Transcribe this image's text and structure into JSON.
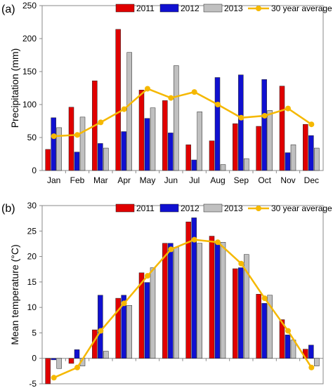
{
  "colors": {
    "2011": "#e00000",
    "2012": "#1010d0",
    "2013": "#c0c0c0",
    "average": "#f5b800",
    "outline": "#222222"
  },
  "chart_data": [
    {
      "panel_label": "(a)",
      "type": "bar",
      "categories": [
        "Jan",
        "Feb",
        "Mar",
        "Apr",
        "May",
        "Jun",
        "Jul",
        "Aug",
        "Sep",
        "Oct",
        "Nov",
        "Dec"
      ],
      "series": [
        {
          "name": "2011",
          "values": [
            32,
            96,
            136,
            214,
            122,
            106,
            39,
            45,
            71,
            67,
            128,
            70
          ]
        },
        {
          "name": "2012",
          "values": [
            80,
            28,
            41,
            59,
            79,
            57,
            16,
            141,
            145,
            138,
            27,
            53
          ]
        },
        {
          "name": "2013",
          "values": [
            65,
            81,
            34,
            179,
            95,
            159,
            89,
            9,
            18,
            91,
            39,
            34
          ]
        }
      ],
      "line_series": {
        "name": "30 year average",
        "values": [
          52,
          54,
          73,
          93,
          124,
          110,
          119,
          100,
          80,
          83,
          94,
          70
        ]
      },
      "title": "",
      "xlabel": "",
      "ylabel": "Precipitation (mm)",
      "ylim": [
        0,
        250
      ],
      "yticks": [
        0,
        50,
        100,
        150,
        200,
        250
      ],
      "grid": false,
      "legend": "top"
    },
    {
      "panel_label": "(b)",
      "type": "bar",
      "categories": [
        "Jan",
        "Feb",
        "Mar",
        "Apr",
        "May",
        "Jun",
        "Jul",
        "Aug",
        "Sep",
        "Oct",
        "Nov",
        "Dec"
      ],
      "series": [
        {
          "name": "2011",
          "values": [
            -5.0,
            -1.0,
            5.6,
            11.8,
            16.8,
            22.6,
            26.8,
            24.0,
            17.6,
            12.6,
            7.6,
            1.8
          ]
        },
        {
          "name": "2012",
          "values": [
            -0.3,
            1.7,
            12.4,
            12.4,
            14.9,
            22.6,
            27.6,
            23.0,
            17.8,
            10.8,
            4.6,
            2.6
          ]
        },
        {
          "name": "2013",
          "values": [
            -2.0,
            -1.5,
            1.4,
            10.4,
            17.8,
            21.8,
            22.6,
            22.8,
            20.4,
            12.4,
            3.6,
            -1.5
          ]
        }
      ],
      "line_series": {
        "name": "30 year average",
        "values": [
          -3.8,
          -1.8,
          5.4,
          10.8,
          16.2,
          21.4,
          23.3,
          22.8,
          18.6,
          11.8,
          5.4,
          -1.8
        ]
      },
      "title": "",
      "xlabel": "",
      "ylabel": "Mean temperature (°C)",
      "ylim": [
        -5,
        30
      ],
      "yticks": [
        -5,
        0,
        5,
        10,
        15,
        20,
        25,
        30
      ],
      "grid": false,
      "legend": "top"
    }
  ]
}
